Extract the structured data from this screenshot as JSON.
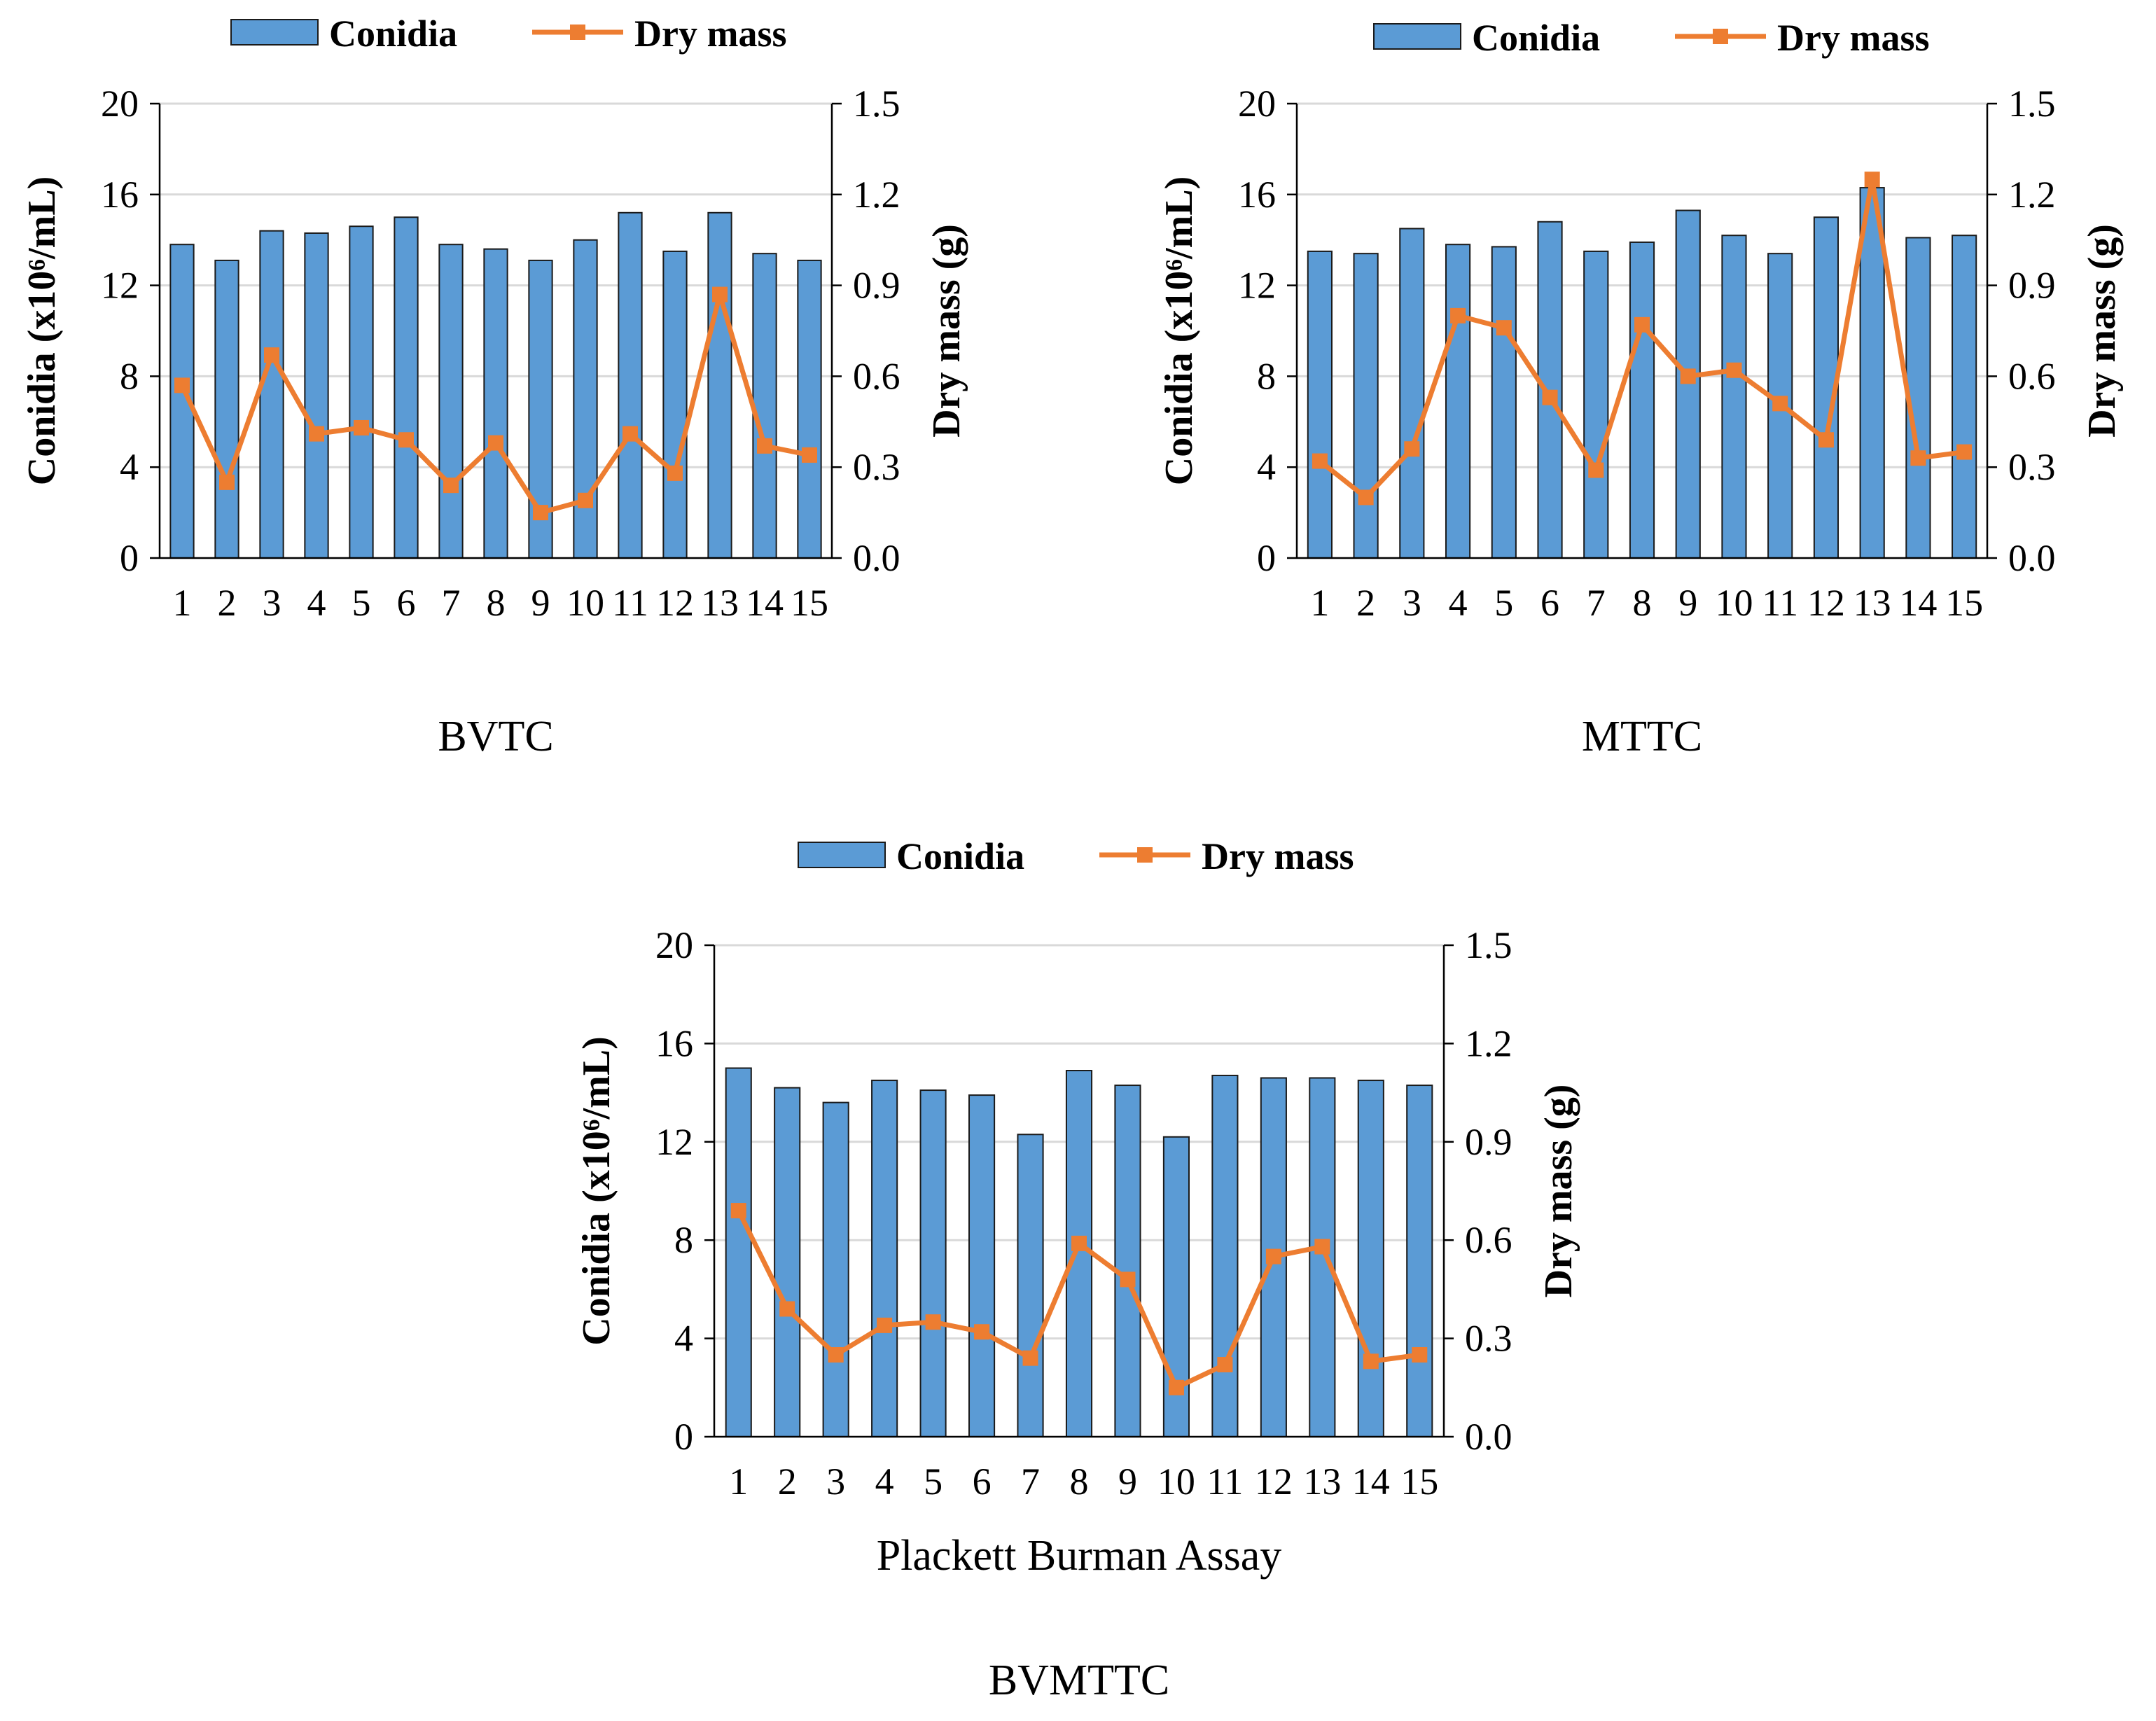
{
  "colors": {
    "bar": "#5b9bd5",
    "bar_edge": "#1a1a1a",
    "line": "#ed7d31",
    "grid": "#d9d9d9",
    "axis": "#000000"
  },
  "legend": {
    "bar_label": "Conidia",
    "line_label": "Dry mass"
  },
  "chart_data": [
    {
      "type": "bar+line",
      "caption": "BVTC",
      "categories": [
        "1",
        "2",
        "3",
        "4",
        "5",
        "6",
        "7",
        "8",
        "9",
        "10",
        "11",
        "12",
        "13",
        "14",
        "15"
      ],
      "series": [
        {
          "name": "Conidia",
          "axis": "left",
          "kind": "bar",
          "values": [
            13.8,
            13.1,
            14.4,
            14.3,
            14.6,
            15.0,
            13.8,
            13.6,
            13.1,
            14.0,
            15.2,
            13.5,
            15.2,
            13.4,
            13.1
          ]
        },
        {
          "name": "Dry mass",
          "axis": "right",
          "kind": "line",
          "values": [
            0.57,
            0.25,
            0.67,
            0.41,
            0.43,
            0.39,
            0.24,
            0.38,
            0.15,
            0.19,
            0.41,
            0.28,
            0.87,
            0.37,
            0.34
          ]
        }
      ],
      "xlabel": "",
      "ylabel_left": "Conidia (x10⁶/mL)",
      "ylabel_right": "Dry mass (g)",
      "ylim_left": [
        0,
        20
      ],
      "ylim_right": [
        0,
        1.5
      ],
      "yticks_left": [
        "0",
        "4",
        "8",
        "12",
        "16",
        "20"
      ],
      "yticks_right": [
        "0.0",
        "0.3",
        "0.6",
        "0.9",
        "1.2",
        "1.5"
      ],
      "grid": true,
      "legend_position": "top"
    },
    {
      "type": "bar+line",
      "caption": "MTTC",
      "categories": [
        "1",
        "2",
        "3",
        "4",
        "5",
        "6",
        "7",
        "8",
        "9",
        "10",
        "11",
        "12",
        "13",
        "14",
        "15"
      ],
      "series": [
        {
          "name": "Conidia",
          "axis": "left",
          "kind": "bar",
          "values": [
            13.5,
            13.4,
            14.5,
            13.8,
            13.7,
            14.8,
            13.5,
            13.9,
            15.3,
            14.2,
            13.4,
            15.0,
            16.3,
            14.1,
            14.2
          ]
        },
        {
          "name": "Dry mass",
          "axis": "right",
          "kind": "line",
          "values": [
            0.32,
            0.2,
            0.36,
            0.8,
            0.76,
            0.53,
            0.29,
            0.77,
            0.6,
            0.62,
            0.51,
            0.39,
            1.25,
            0.33,
            0.35
          ]
        }
      ],
      "xlabel": "",
      "ylabel_left": "Conidia (x10⁶/mL)",
      "ylabel_right": "Dry mass (g)",
      "ylim_left": [
        0,
        20
      ],
      "ylim_right": [
        0,
        1.5
      ],
      "yticks_left": [
        "0",
        "4",
        "8",
        "12",
        "16",
        "20"
      ],
      "yticks_right": [
        "0.0",
        "0.3",
        "0.6",
        "0.9",
        "1.2",
        "1.5"
      ],
      "grid": true,
      "legend_position": "top"
    },
    {
      "type": "bar+line",
      "caption": "BVMTTC",
      "categories": [
        "1",
        "2",
        "3",
        "4",
        "5",
        "6",
        "7",
        "8",
        "9",
        "10",
        "11",
        "12",
        "13",
        "14",
        "15"
      ],
      "series": [
        {
          "name": "Conidia",
          "axis": "left",
          "kind": "bar",
          "values": [
            15.0,
            14.2,
            13.6,
            14.5,
            14.1,
            13.9,
            12.3,
            14.9,
            14.3,
            12.2,
            14.7,
            14.6,
            14.6,
            14.5,
            14.3
          ]
        },
        {
          "name": "Dry mass",
          "axis": "right",
          "kind": "line",
          "values": [
            0.69,
            0.39,
            0.25,
            0.34,
            0.35,
            0.32,
            0.24,
            0.59,
            0.48,
            0.15,
            0.22,
            0.55,
            0.58,
            0.23,
            0.25
          ]
        }
      ],
      "xlabel": "Plackett Burman Assay",
      "ylabel_left": "Conidia (x10⁶/mL)",
      "ylabel_right": "Dry mass (g)",
      "ylim_left": [
        0,
        20
      ],
      "ylim_right": [
        0,
        1.5
      ],
      "yticks_left": [
        "0",
        "4",
        "8",
        "12",
        "16",
        "20"
      ],
      "yticks_right": [
        "0.0",
        "0.3",
        "0.6",
        "0.9",
        "1.2",
        "1.5"
      ],
      "grid": true,
      "legend_position": "top"
    }
  ]
}
